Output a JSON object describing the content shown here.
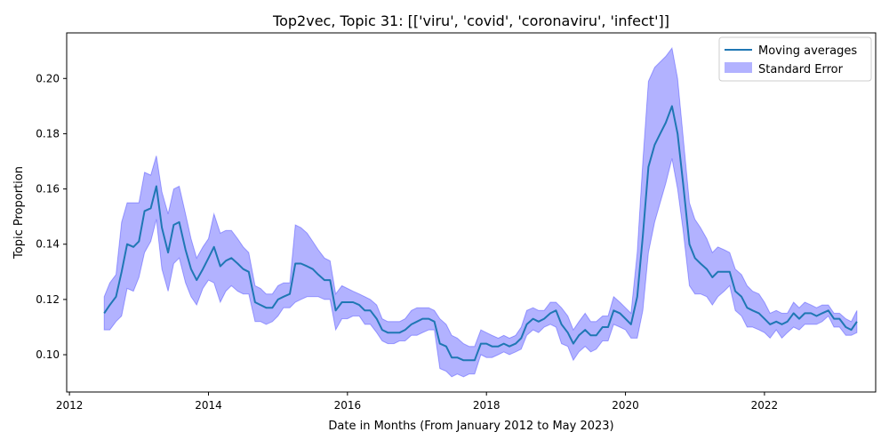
{
  "chart_data": {
    "type": "line",
    "title": "Top2vec, Topic 31: [['viru', 'covid', 'coronaviru', 'infect']]",
    "xlabel": "Date in Months (From January 2012 to May 2023)",
    "ylabel": "Topic Proportion",
    "xlim": [
      2011.96,
      2023.6
    ],
    "ylim": [
      0.0865,
      0.2165
    ],
    "x_ticks": [
      2012,
      2014,
      2016,
      2018,
      2020,
      2022
    ],
    "y_ticks": [
      0.1,
      0.12,
      0.14,
      0.16,
      0.18,
      0.2
    ],
    "x_tick_labels": [
      "2012",
      "2014",
      "2016",
      "2018",
      "2020",
      "2022"
    ],
    "y_tick_labels": [
      "0.10",
      "0.12",
      "0.14",
      "0.16",
      "0.18",
      "0.20"
    ],
    "grid": false,
    "legend": {
      "position": "top-right",
      "entries": [
        "Moving averages",
        "Standard Error"
      ]
    },
    "colors": {
      "line": "#1f77b4",
      "band": "#0000ff",
      "band_edge": "#6e6edc"
    },
    "series": [
      {
        "name": "Moving averages",
        "x": [
          2012.5,
          2012.58,
          2012.67,
          2012.75,
          2012.83,
          2012.92,
          2013.0,
          2013.08,
          2013.17,
          2013.25,
          2013.33,
          2013.42,
          2013.5,
          2013.58,
          2013.67,
          2013.75,
          2013.83,
          2013.92,
          2014.0,
          2014.08,
          2014.17,
          2014.25,
          2014.33,
          2014.42,
          2014.5,
          2014.58,
          2014.67,
          2014.75,
          2014.83,
          2014.92,
          2015.0,
          2015.08,
          2015.17,
          2015.25,
          2015.33,
          2015.42,
          2015.5,
          2015.58,
          2015.67,
          2015.75,
          2015.83,
          2015.92,
          2016.0,
          2016.08,
          2016.17,
          2016.25,
          2016.33,
          2016.42,
          2016.5,
          2016.58,
          2016.67,
          2016.75,
          2016.83,
          2016.92,
          2017.0,
          2017.08,
          2017.17,
          2017.25,
          2017.33,
          2017.42,
          2017.5,
          2017.58,
          2017.67,
          2017.75,
          2017.83,
          2017.92,
          2018.0,
          2018.08,
          2018.17,
          2018.25,
          2018.33,
          2018.42,
          2018.5,
          2018.58,
          2018.67,
          2018.75,
          2018.83,
          2018.92,
          2019.0,
          2019.08,
          2019.17,
          2019.25,
          2019.33,
          2019.42,
          2019.5,
          2019.58,
          2019.67,
          2019.75,
          2019.83,
          2019.92,
          2020.0,
          2020.08,
          2020.17,
          2020.25,
          2020.33,
          2020.42,
          2020.5,
          2020.58,
          2020.67,
          2020.75,
          2020.83,
          2020.92,
          2021.0,
          2021.08,
          2021.17,
          2021.25,
          2021.33,
          2021.42,
          2021.5,
          2021.58,
          2021.67,
          2021.75,
          2021.83,
          2021.92,
          2022.0,
          2022.08,
          2022.17,
          2022.25,
          2022.33,
          2022.42,
          2022.5,
          2022.58,
          2022.67,
          2022.75,
          2022.83,
          2022.92,
          2023.0,
          2023.08,
          2023.17,
          2023.25,
          2023.33
        ],
        "values": [
          0.115,
          0.118,
          0.121,
          0.13,
          0.14,
          0.139,
          0.141,
          0.152,
          0.153,
          0.161,
          0.146,
          0.137,
          0.147,
          0.148,
          0.138,
          0.131,
          0.127,
          0.131,
          0.135,
          0.139,
          0.132,
          0.134,
          0.135,
          0.133,
          0.131,
          0.13,
          0.119,
          0.118,
          0.117,
          0.117,
          0.12,
          0.121,
          0.122,
          0.133,
          0.133,
          0.132,
          0.131,
          0.129,
          0.127,
          0.127,
          0.116,
          0.119,
          0.119,
          0.119,
          0.118,
          0.116,
          0.116,
          0.113,
          0.109,
          0.108,
          0.108,
          0.108,
          0.109,
          0.111,
          0.112,
          0.113,
          0.113,
          0.112,
          0.104,
          0.103,
          0.099,
          0.099,
          0.098,
          0.098,
          0.098,
          0.104,
          0.104,
          0.103,
          0.103,
          0.104,
          0.103,
          0.104,
          0.106,
          0.111,
          0.113,
          0.112,
          0.113,
          0.115,
          0.116,
          0.111,
          0.108,
          0.104,
          0.107,
          0.109,
          0.107,
          0.107,
          0.11,
          0.11,
          0.116,
          0.115,
          0.113,
          0.111,
          0.121,
          0.143,
          0.168,
          0.176,
          0.18,
          0.184,
          0.19,
          0.18,
          0.162,
          0.14,
          0.135,
          0.133,
          0.131,
          0.128,
          0.13,
          0.13,
          0.13,
          0.123,
          0.121,
          0.117,
          0.116,
          0.115,
          0.113,
          0.111,
          0.112,
          0.111,
          0.112,
          0.115,
          0.113,
          0.115,
          0.115,
          0.114,
          0.115,
          0.116,
          0.113,
          0.113,
          0.11,
          0.109,
          0.112
        ]
      }
    ],
    "band": {
      "name": "Standard Error",
      "lower": [
        0.109,
        0.109,
        0.112,
        0.114,
        0.124,
        0.123,
        0.128,
        0.137,
        0.141,
        0.149,
        0.131,
        0.123,
        0.133,
        0.135,
        0.126,
        0.121,
        0.118,
        0.124,
        0.127,
        0.126,
        0.119,
        0.123,
        0.125,
        0.123,
        0.122,
        0.122,
        0.112,
        0.112,
        0.111,
        0.112,
        0.114,
        0.117,
        0.117,
        0.119,
        0.12,
        0.121,
        0.121,
        0.121,
        0.12,
        0.12,
        0.109,
        0.113,
        0.113,
        0.114,
        0.114,
        0.111,
        0.111,
        0.108,
        0.105,
        0.104,
        0.104,
        0.105,
        0.105,
        0.107,
        0.107,
        0.108,
        0.109,
        0.109,
        0.095,
        0.094,
        0.092,
        0.093,
        0.092,
        0.093,
        0.093,
        0.1,
        0.099,
        0.099,
        0.1,
        0.101,
        0.1,
        0.101,
        0.102,
        0.107,
        0.109,
        0.108,
        0.11,
        0.111,
        0.11,
        0.104,
        0.103,
        0.098,
        0.101,
        0.103,
        0.101,
        0.102,
        0.105,
        0.105,
        0.111,
        0.11,
        0.109,
        0.106,
        0.106,
        0.116,
        0.137,
        0.148,
        0.155,
        0.162,
        0.171,
        0.16,
        0.145,
        0.125,
        0.122,
        0.122,
        0.121,
        0.118,
        0.121,
        0.123,
        0.125,
        0.116,
        0.114,
        0.11,
        0.11,
        0.109,
        0.108,
        0.106,
        0.109,
        0.106,
        0.108,
        0.11,
        0.109,
        0.111,
        0.111,
        0.111,
        0.112,
        0.114,
        0.11,
        0.11,
        0.107,
        0.107,
        0.108
      ],
      "upper": [
        0.121,
        0.126,
        0.129,
        0.148,
        0.155,
        0.155,
        0.155,
        0.166,
        0.165,
        0.172,
        0.159,
        0.151,
        0.16,
        0.161,
        0.151,
        0.142,
        0.135,
        0.139,
        0.142,
        0.151,
        0.144,
        0.145,
        0.145,
        0.142,
        0.139,
        0.137,
        0.125,
        0.124,
        0.122,
        0.122,
        0.125,
        0.126,
        0.126,
        0.147,
        0.146,
        0.144,
        0.141,
        0.138,
        0.135,
        0.134,
        0.122,
        0.125,
        0.124,
        0.123,
        0.122,
        0.121,
        0.12,
        0.118,
        0.113,
        0.112,
        0.112,
        0.112,
        0.113,
        0.116,
        0.117,
        0.117,
        0.117,
        0.116,
        0.113,
        0.111,
        0.107,
        0.106,
        0.104,
        0.103,
        0.103,
        0.109,
        0.108,
        0.107,
        0.106,
        0.107,
        0.106,
        0.107,
        0.11,
        0.116,
        0.117,
        0.116,
        0.116,
        0.119,
        0.119,
        0.117,
        0.114,
        0.109,
        0.112,
        0.115,
        0.112,
        0.112,
        0.114,
        0.114,
        0.121,
        0.119,
        0.117,
        0.115,
        0.137,
        0.17,
        0.199,
        0.204,
        0.206,
        0.208,
        0.211,
        0.2,
        0.179,
        0.155,
        0.149,
        0.146,
        0.142,
        0.137,
        0.139,
        0.138,
        0.137,
        0.131,
        0.129,
        0.125,
        0.123,
        0.122,
        0.119,
        0.115,
        0.116,
        0.115,
        0.115,
        0.119,
        0.117,
        0.119,
        0.118,
        0.117,
        0.118,
        0.118,
        0.115,
        0.115,
        0.113,
        0.112,
        0.116
      ]
    }
  }
}
